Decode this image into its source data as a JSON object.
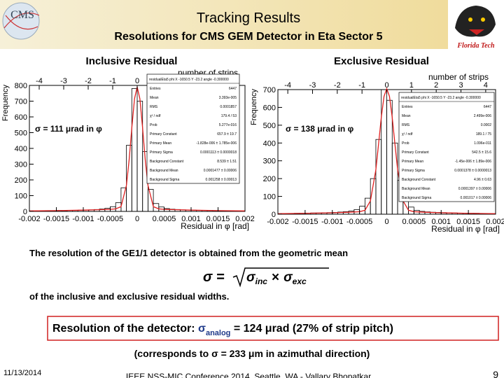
{
  "slide": {
    "title": "Tracking Results",
    "subtitle": "Resolutions for CMS GEM Detector in Eta Sector 5",
    "logo_left": "CMS",
    "logo_right": "Florida Tech",
    "text1": "The resolution of the GE1/1 detector is obtained from the geometric mean",
    "formula": {
      "lhs": "σ",
      "eq": "=",
      "a": "σ",
      "a_sub": "inc",
      "op": "×",
      "b": "σ",
      "b_sub": "exc"
    },
    "text2": "of the inclusive and exclusive residual widths.",
    "result": {
      "prefix": "Resolution of the detector: ",
      "symbol": "σ",
      "sub": "analog",
      "rest": " = 124 μrad (27% of strip pitch)"
    },
    "note": "(corresponds to σ = 233 μm in azimuthal direction)",
    "date": "11/13/2014",
    "footer": "IEEE NSS-MIC Conference 2014, Seattle, WA - Vallary Bhopatkar",
    "page": "9"
  },
  "chart_data": [
    {
      "type": "histogram",
      "title": "Inclusive Residual",
      "xlabel": "Residual in φ [rad]",
      "ylabel": "Frequency",
      "x2label": "number of strips",
      "annotation": "σ = 111 μrad in φ",
      "color": "#000000",
      "fit_color": "#e02020",
      "bins": [
        -0.002,
        -0.0019,
        -0.0018,
        -0.0017,
        -0.0016,
        -0.0015,
        -0.0014,
        -0.0013,
        -0.0012,
        -0.0011,
        -0.001,
        -0.0009,
        -0.0008,
        -0.0007,
        -0.0006,
        -0.0005,
        -0.0004,
        -0.0003,
        -0.0002,
        -0.0001,
        0,
        0.0001,
        0.0002,
        0.0003,
        0.0004,
        0.0005,
        0.0006,
        0.0007,
        0.0008,
        0.0009,
        0.001,
        0.0011,
        0.0012,
        0.0013,
        0.0014,
        0.0015,
        0.0016,
        0.0017,
        0.0018,
        0.0019,
        0.002
      ],
      "counts": [
        3,
        4,
        3,
        5,
        4,
        6,
        5,
        7,
        6,
        8,
        9,
        10,
        12,
        15,
        20,
        30,
        55,
        150,
        420,
        780,
        700,
        380,
        140,
        50,
        28,
        18,
        14,
        12,
        10,
        9,
        8,
        7,
        7,
        6,
        5,
        5,
        4,
        4,
        3,
        3
      ],
      "fit": {
        "x": [
          -0.002,
          -0.0015,
          -0.001,
          -0.0007,
          -0.0005,
          -0.0004,
          -0.0003,
          -0.0002,
          -0.00015,
          -0.0001,
          -5e-05,
          0,
          5e-05,
          0.0001,
          0.00015,
          0.0002,
          0.0003,
          0.0004,
          0.0005,
          0.0007,
          0.001,
          0.0015,
          0.002
        ],
        "values": [
          3,
          5,
          8,
          11,
          13,
          16,
          30,
          165,
          325,
          530,
          715,
          790,
          715,
          530,
          325,
          165,
          30,
          16,
          13,
          11,
          8,
          5,
          3
        ]
      },
      "xlim": [
        -0.002,
        0.002
      ],
      "xticks": [
        -0.002,
        -0.0015,
        -0.001,
        -0.0005,
        0,
        0.0005,
        0.001,
        0.0015,
        0.002
      ],
      "ylim": [
        0,
        800
      ],
      "yticks": [
        0,
        100,
        200,
        300,
        400,
        500,
        600,
        700,
        800
      ],
      "x2lim": [
        -4.4,
        4.4
      ],
      "x2ticks": [
        -4,
        -3,
        -2,
        -1,
        0,
        1,
        2,
        3,
        4
      ],
      "stats": [
        [
          "residualEta5 phi X -1650.5 Y -23.2 angle -0.300000",
          ""
        ],
        [
          "Entries",
          "6447"
        ],
        [
          "Mean",
          "3.393e-005"
        ],
        [
          "RMS",
          "0.0001857"
        ],
        [
          "χ² / ndf",
          "179.4 / 53"
        ],
        [
          "Prob",
          "5.277e-016"
        ],
        [
          "Primary Constant",
          "657.9 ± 19.7"
        ],
        [
          "Primary Mean",
          "-1.828e-006 ± 1.785e-006"
        ],
        [
          "Primary Sigma",
          "0.0001113 ± 0.0000018"
        ],
        [
          "Background Constant",
          "8.539 ± 1.51"
        ],
        [
          "Background Mean",
          "0.0001477 ± 0.00006"
        ],
        [
          "Background Sigma",
          "0.001258 ± 0.00013"
        ]
      ]
    },
    {
      "type": "histogram",
      "title": "Exclusive Residual",
      "xlabel": "Residual in φ [rad]",
      "ylabel": "Frequency",
      "x2label": "number of strips",
      "annotation": "σ = 138 μrad in φ",
      "color": "#000000",
      "fit_color": "#e02020",
      "bins": [
        -0.002,
        -0.0019,
        -0.0018,
        -0.0017,
        -0.0016,
        -0.0015,
        -0.0014,
        -0.0013,
        -0.0012,
        -0.0011,
        -0.001,
        -0.0009,
        -0.0008,
        -0.0007,
        -0.0006,
        -0.0005,
        -0.0004,
        -0.0003,
        -0.0002,
        -0.0001,
        0,
        0.0001,
        0.0002,
        0.0003,
        0.0004,
        0.0005,
        0.0006,
        0.0007,
        0.0008,
        0.0009,
        0.001,
        0.0011,
        0.0012,
        0.0013,
        0.0014,
        0.0015,
        0.0016,
        0.0017,
        0.0018,
        0.0019,
        0.002
      ],
      "counts": [
        3,
        4,
        4,
        5,
        5,
        6,
        7,
        7,
        8,
        9,
        10,
        12,
        14,
        18,
        26,
        45,
        90,
        200,
        420,
        700,
        640,
        400,
        190,
        80,
        40,
        22,
        16,
        13,
        11,
        10,
        9,
        8,
        7,
        6,
        6,
        5,
        5,
        4,
        4,
        3
      ],
      "fit": {
        "x": [
          -0.002,
          -0.0015,
          -0.001,
          -0.0007,
          -0.0005,
          -0.0004,
          -0.0003,
          -0.0002,
          -0.00015,
          -0.0001,
          -5e-05,
          0,
          5e-05,
          0.0001,
          0.00015,
          0.0002,
          0.0003,
          0.0004,
          0.0005,
          0.0007,
          0.001,
          0.0015,
          0.002
        ],
        "values": [
          3,
          5,
          8,
          11,
          14,
          22,
          75,
          250,
          395,
          545,
          662,
          705,
          662,
          545,
          395,
          250,
          75,
          22,
          14,
          11,
          8,
          5,
          3
        ]
      },
      "xlim": [
        -0.002,
        0.002
      ],
      "xticks": [
        -0.002,
        -0.0015,
        -0.001,
        -0.0005,
        0,
        0.0005,
        0.001,
        0.0015,
        0.002
      ],
      "ylim": [
        0,
        700
      ],
      "yticks": [
        0,
        100,
        200,
        300,
        400,
        500,
        600,
        700
      ],
      "x2lim": [
        -4.4,
        4.4
      ],
      "x2ticks": [
        -4,
        -3,
        -2,
        -1,
        0,
        1,
        2,
        3,
        4
      ],
      "stats": [
        [
          "residualEta5 phi X -1650.5 Y -23.2 angle -0.300000",
          ""
        ],
        [
          "Entries",
          "6447"
        ],
        [
          "Mean",
          "2.499e-006"
        ],
        [
          "RMS",
          "0.0002"
        ],
        [
          "χ² / ndf",
          "189.1 / 75"
        ],
        [
          "Prob",
          "1.096e-011"
        ],
        [
          "Primary Constant",
          "542.5 ± 15.6"
        ],
        [
          "Primary Mean",
          "-1.45e-006 ± 1.89e-006"
        ],
        [
          "Primary Sigma",
          "0.0001378 ± 0.0000013"
        ],
        [
          "Background Constant",
          "4.96 ± 0.63"
        ],
        [
          "Background Mean",
          "0.0001397 ± 0.00006"
        ],
        [
          "Background Sigma",
          "0.001017 ± 0.00006"
        ]
      ]
    }
  ]
}
